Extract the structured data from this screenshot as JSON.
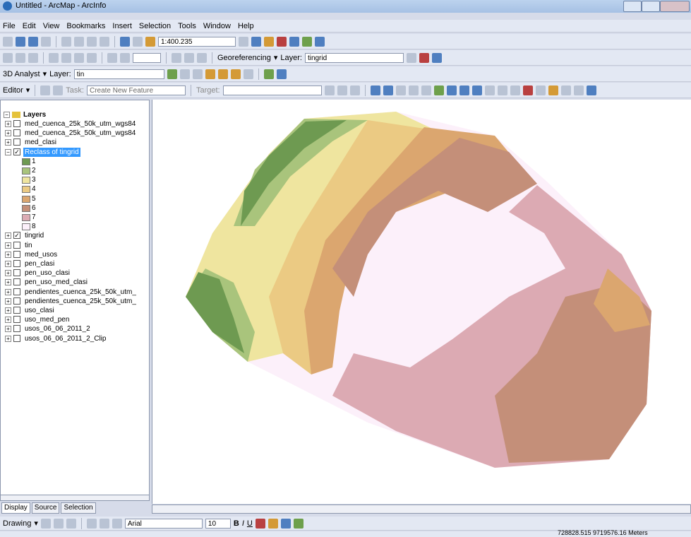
{
  "window": {
    "title": "Untitled - ArcMap - ArcInfo"
  },
  "menu": [
    "File",
    "Edit",
    "View",
    "Bookmarks",
    "Insert",
    "Selection",
    "Tools",
    "Window",
    "Help"
  ],
  "toolbars": {
    "scale": "1:400.235",
    "georeferencing": "Georeferencing",
    "geo_layer_label": "Layer:",
    "geo_layer": "tingrid",
    "analyst": "3D Analyst",
    "analyst_layer_label": "Layer:",
    "analyst_layer": "tin",
    "editor": "Editor",
    "task_label": "Task:",
    "task": "Create New Feature",
    "target_label": "Target:"
  },
  "toc": {
    "title": "Layers",
    "layers": [
      {
        "name": "med_cuenca_25k_50k_utm_wgs84",
        "checked": false
      },
      {
        "name": "med_cuenca_25k_50k_utm_wgs84",
        "checked": false
      },
      {
        "name": "med_clasi",
        "checked": false
      },
      {
        "name": "Reclass of tingrid",
        "checked": true,
        "selected": true,
        "expanded": true,
        "classes": [
          {
            "label": "1",
            "color": "#6e9a51"
          },
          {
            "label": "2",
            "color": "#a9c47c"
          },
          {
            "label": "3",
            "color": "#efe59f"
          },
          {
            "label": "4",
            "color": "#ebca83"
          },
          {
            "label": "5",
            "color": "#dba66f"
          },
          {
            "label": "6",
            "color": "#c48f79"
          },
          {
            "label": "7",
            "color": "#dcabb4"
          },
          {
            "label": "8",
            "color": "#fcf0fa"
          }
        ]
      },
      {
        "name": "tingrid",
        "checked": true
      },
      {
        "name": "tin",
        "checked": false
      },
      {
        "name": "med_usos",
        "checked": false
      },
      {
        "name": "pen_clasi",
        "checked": false
      },
      {
        "name": "pen_uso_clasi",
        "checked": false
      },
      {
        "name": "pen_uso_med_clasi",
        "checked": false
      },
      {
        "name": "pendientes_cuenca_25k_50k_utm_",
        "checked": false
      },
      {
        "name": "pendientes_cuenca_25k_50k_utm_",
        "checked": false
      },
      {
        "name": "uso_clasi",
        "checked": false
      },
      {
        "name": "uso_med_pen",
        "checked": false
      },
      {
        "name": "usos_06_06_2011_2",
        "checked": false
      },
      {
        "name": "usos_06_06_2011_2_Clip",
        "checked": false
      }
    ]
  },
  "tabs": [
    "Display",
    "Source",
    "Selection"
  ],
  "drawing": {
    "label": "Drawing",
    "font": "Arial",
    "size": "10",
    "bold": "B",
    "italic": "I",
    "underline": "U"
  },
  "status": {
    "coordinates": "728828.515  9719576.16 Meters"
  }
}
